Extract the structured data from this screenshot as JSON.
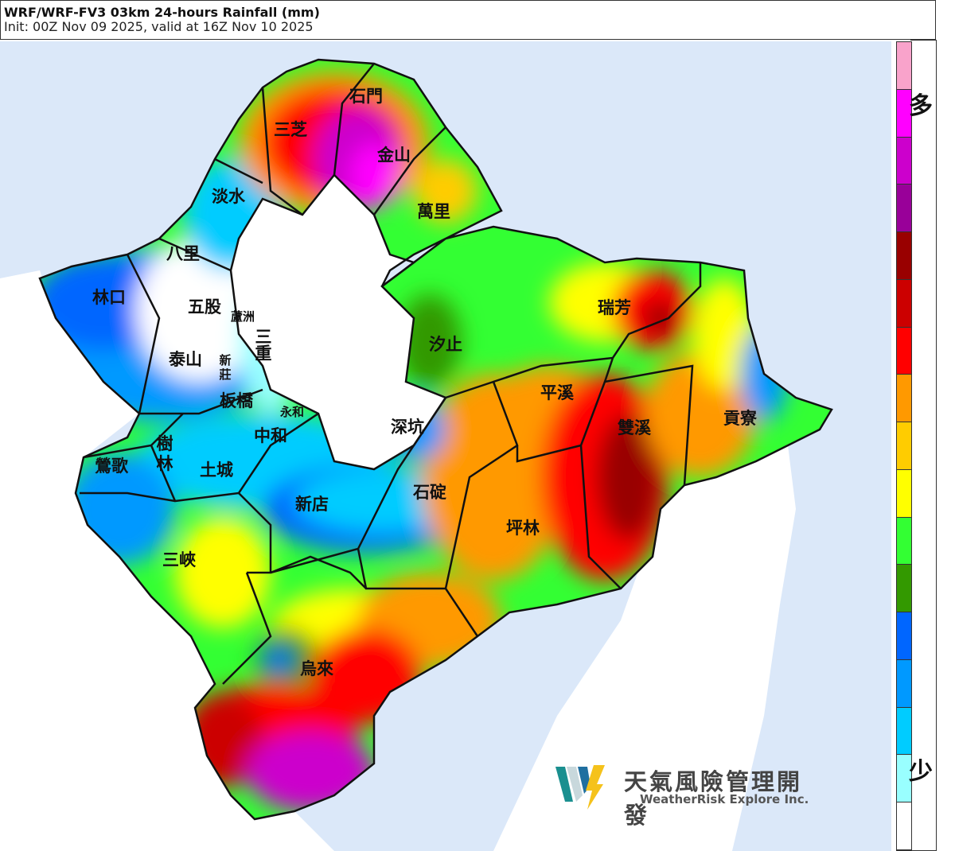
{
  "header": {
    "title": "WRF/WRF-FV3 03km 24-hours Rainfall (mm)",
    "subtitle": "Init: 00Z Nov 09 2025, valid at 16Z Nov 10 2025"
  },
  "colorbar": {
    "top_label": "多",
    "bottom_label": "少",
    "colors": [
      "#f9a3cb",
      "#ff00ff",
      "#cc00cc",
      "#990099",
      "#990000",
      "#cc0000",
      "#ff0000",
      "#ff9900",
      "#ffcc00",
      "#ffff00",
      "#33ff33",
      "#339900",
      "#0066ff",
      "#0099ff",
      "#00ccff",
      "#99ffff",
      "#ffffff"
    ]
  },
  "colors": {
    "sea": "#dbe8f9",
    "land_outside": "#ffffff"
  },
  "districts": [
    "石門",
    "三芝",
    "金山",
    "淡水",
    "萬里",
    "八里",
    "林口",
    "五股",
    "蘆洲",
    "瑞芳",
    "汐止",
    "三重",
    "泰山",
    "新",
    "莊",
    "平溪",
    "板橋",
    "永和",
    "貢寮",
    "深坑",
    "雙溪",
    "中和",
    "樹",
    "林",
    "鶯歌",
    "土城",
    "石碇",
    "新店",
    "坪林",
    "三峽",
    "烏來"
  ],
  "logo": {
    "name_zh": "天氣風險管理開發",
    "name_en": "WeatherRisk Explore Inc."
  }
}
